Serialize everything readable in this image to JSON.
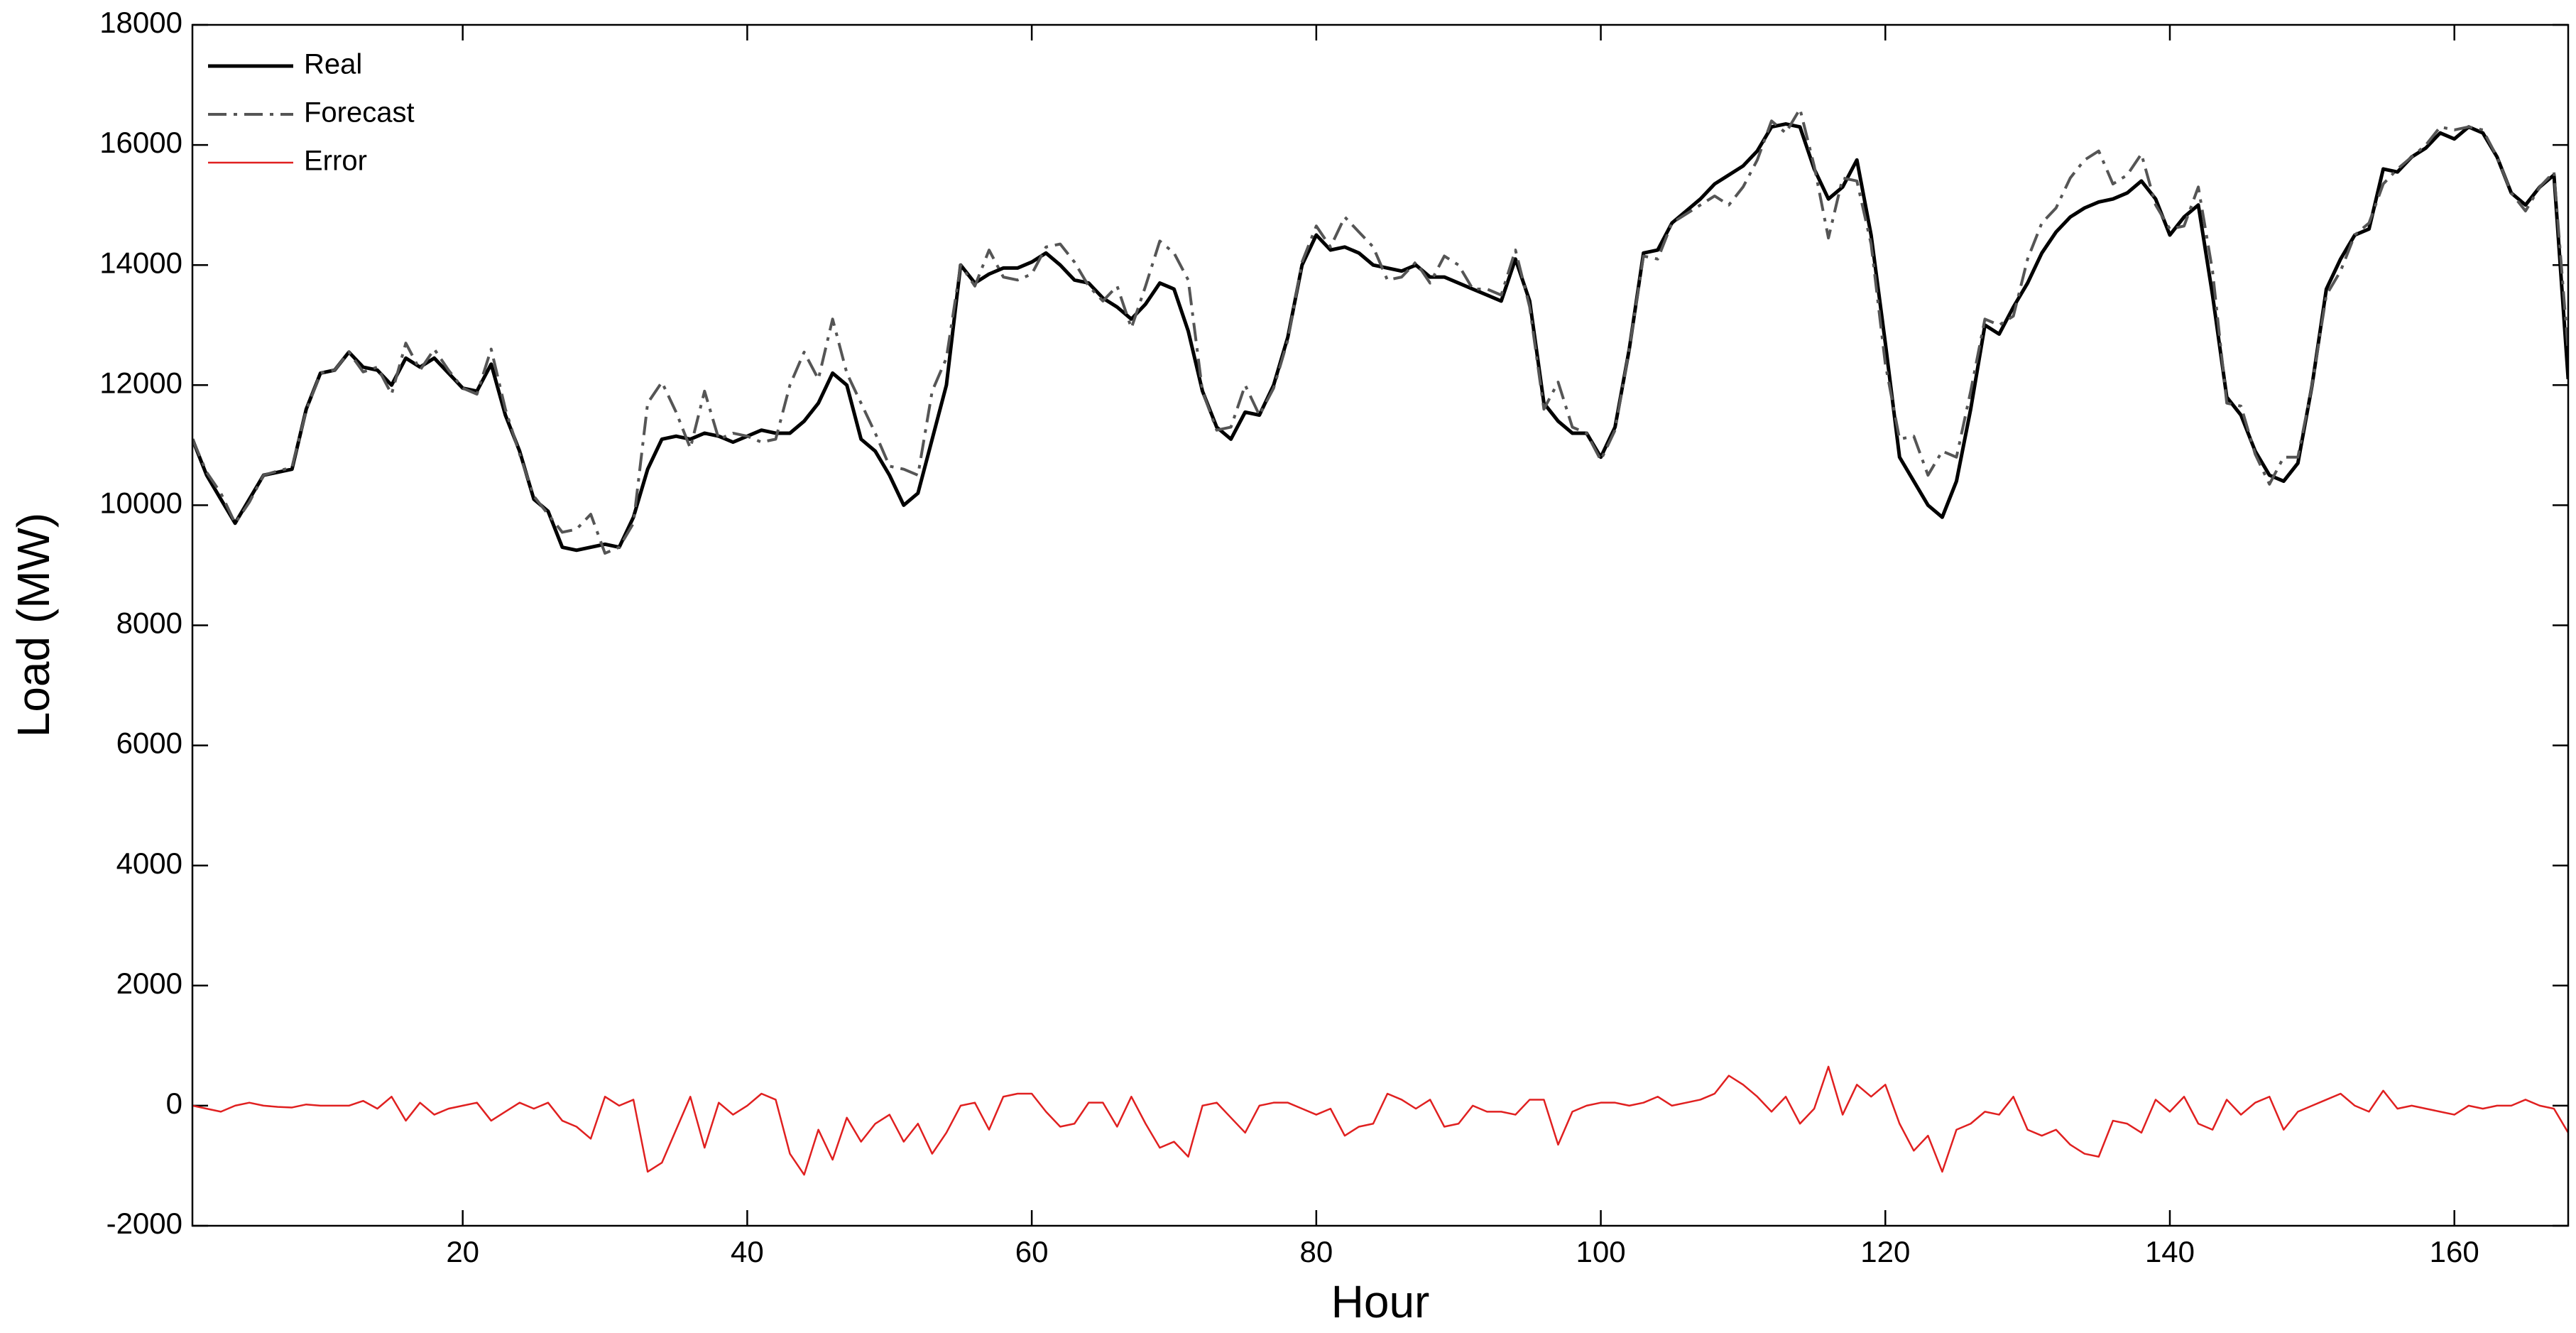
{
  "chart_data": {
    "type": "line",
    "xlabel": "Hour",
    "ylabel": "Load (MW)",
    "x": [
      1,
      2,
      3,
      4,
      5,
      6,
      7,
      8,
      9,
      10,
      11,
      12,
      13,
      14,
      15,
      16,
      17,
      18,
      19,
      20,
      21,
      22,
      23,
      24,
      25,
      26,
      27,
      28,
      29,
      30,
      31,
      32,
      33,
      34,
      35,
      36,
      37,
      38,
      39,
      40,
      41,
      42,
      43,
      44,
      45,
      46,
      47,
      48,
      49,
      50,
      51,
      52,
      53,
      54,
      55,
      56,
      57,
      58,
      59,
      60,
      61,
      62,
      63,
      64,
      65,
      66,
      67,
      68,
      69,
      70,
      71,
      72,
      73,
      74,
      75,
      76,
      77,
      78,
      79,
      80,
      81,
      82,
      83,
      84,
      85,
      86,
      87,
      88,
      89,
      90,
      91,
      92,
      93,
      94,
      95,
      96,
      97,
      98,
      99,
      100,
      101,
      102,
      103,
      104,
      105,
      106,
      107,
      108,
      109,
      110,
      111,
      112,
      113,
      114,
      115,
      116,
      117,
      118,
      119,
      120,
      121,
      122,
      123,
      124,
      125,
      126,
      127,
      128,
      129,
      130,
      131,
      132,
      133,
      134,
      135,
      136,
      137,
      138,
      139,
      140,
      141,
      142,
      143,
      144,
      145,
      146,
      147,
      148,
      149,
      150,
      151,
      152,
      153,
      154,
      155,
      156,
      157,
      158,
      159,
      160,
      161,
      162,
      163,
      164,
      165,
      166,
      167,
      168
    ],
    "series": [
      {
        "name": "Real",
        "color": "#000000",
        "linestyle": "solid",
        "values": [
          11100,
          10500,
          10100,
          9700,
          10100,
          10500,
          10550,
          10600,
          11600,
          12200,
          12250,
          12550,
          12300,
          12250,
          12000,
          12450,
          12300,
          12450,
          12200,
          11950,
          11900,
          12350,
          11500,
          10900,
          10100,
          9900,
          9300,
          9250,
          9300,
          9350,
          9300,
          9800,
          10600,
          11100,
          11150,
          11100,
          11200,
          11150,
          11050,
          11150,
          11250,
          11200,
          11200,
          11400,
          11700,
          12200,
          12000,
          11100,
          10900,
          10500,
          10000,
          10200,
          11100,
          12000,
          14000,
          13700,
          13850,
          13950,
          13950,
          14050,
          14200,
          14000,
          13750,
          13700,
          13450,
          13300,
          13100,
          13350,
          13700,
          13600,
          12900,
          11900,
          11300,
          11100,
          11550,
          11500,
          12000,
          12800,
          14000,
          14500,
          14250,
          14300,
          14200,
          14000,
          13950,
          13900,
          14000,
          13800,
          13800,
          13700,
          13600,
          13500,
          13400,
          14100,
          13400,
          11700,
          11400,
          11200,
          11200,
          10800,
          11300,
          12600,
          14200,
          14250,
          14700,
          14900,
          15100,
          15350,
          15500,
          15650,
          15900,
          16300,
          16350,
          16300,
          15600,
          15100,
          15300,
          15750,
          14500,
          12700,
          10800,
          10400,
          10000,
          9800,
          10400,
          11600,
          13000,
          12850,
          13300,
          13700,
          14200,
          14550,
          14800,
          14950,
          15050,
          15100,
          15200,
          15400,
          15100,
          14500,
          14800,
          15000,
          13500,
          11800,
          11500,
          10900,
          10500,
          10400,
          10700,
          12000,
          13600,
          14100,
          14500,
          14600,
          15600,
          15550,
          15800,
          15950,
          16200,
          16100,
          16300,
          16200,
          15800,
          15200,
          15000,
          15300,
          15500,
          12100
        ]
      },
      {
        "name": "Forecast",
        "color": "#555555",
        "linestyle": "dashdot",
        "values": [
          11100,
          10550,
          10200,
          9700,
          10050,
          10500,
          10570,
          10630,
          11580,
          12200,
          12250,
          12550,
          12220,
          12300,
          11850,
          12700,
          12250,
          12600,
          12250,
          11950,
          11850,
          12600,
          11600,
          10850,
          10150,
          9850,
          9550,
          9600,
          9850,
          9200,
          9300,
          9700,
          11700,
          12050,
          11550,
          10950,
          11900,
          11100,
          11200,
          11150,
          11050,
          11100,
          12000,
          12550,
          12100,
          13100,
          12200,
          11700,
          11200,
          10650,
          10600,
          10500,
          11900,
          12450,
          14000,
          13650,
          14250,
          13800,
          13750,
          13850,
          14300,
          14350,
          14050,
          13650,
          13400,
          13650,
          12950,
          13650,
          14400,
          14200,
          13750,
          11900,
          11250,
          11300,
          12000,
          11500,
          11950,
          12750,
          14050,
          14650,
          14300,
          14800,
          14550,
          14300,
          13750,
          13800,
          14050,
          13700,
          14150,
          14000,
          13600,
          13600,
          13500,
          14250,
          13300,
          11600,
          12050,
          11300,
          11200,
          10750,
          11250,
          12600,
          14150,
          14100,
          14700,
          14850,
          15000,
          15150,
          15000,
          15300,
          15750,
          16400,
          16200,
          16600,
          15650,
          14450,
          15450,
          15400,
          14350,
          12350,
          11100,
          11150,
          10500,
          10900,
          10800,
          11900,
          13100,
          13000,
          13150,
          14100,
          14700,
          14950,
          15450,
          15750,
          15900,
          15350,
          15500,
          15850,
          15000,
          14600,
          14650,
          15300,
          13900,
          11700,
          11650,
          10850,
          10350,
          10800,
          10800,
          12000,
          13500,
          13900,
          14500,
          14700,
          15350,
          15600,
          15800,
          16000,
          16300,
          16250,
          16300,
          16250,
          15800,
          15200,
          14900,
          15300,
          15550,
          12550
        ]
      },
      {
        "name": "Error",
        "color": "#e02020",
        "linestyle": "solid",
        "values": [
          0,
          -50,
          -100,
          0,
          50,
          0,
          -20,
          -30,
          20,
          0,
          0,
          0,
          80,
          -50,
          150,
          -250,
          50,
          -150,
          -50,
          0,
          50,
          -250,
          -100,
          50,
          -50,
          50,
          -250,
          -350,
          -550,
          150,
          0,
          100,
          -1100,
          -950,
          -400,
          150,
          -700,
          50,
          -150,
          0,
          200,
          100,
          -800,
          -1150,
          -400,
          -900,
          -200,
          -600,
          -300,
          -150,
          -600,
          -300,
          -800,
          -450,
          0,
          50,
          -400,
          150,
          200,
          200,
          -100,
          -350,
          -300,
          50,
          50,
          -350,
          150,
          -300,
          -700,
          -600,
          -850,
          0,
          50,
          -200,
          -450,
          0,
          50,
          50,
          -50,
          -150,
          -50,
          -500,
          -350,
          -300,
          200,
          100,
          -50,
          100,
          -350,
          -300,
          0,
          -100,
          -100,
          -150,
          100,
          100,
          -650,
          -100,
          0,
          50,
          50,
          0,
          50,
          150,
          0,
          50,
          100,
          200,
          500,
          350,
          150,
          -100,
          150,
          -300,
          -50,
          650,
          -150,
          350,
          150,
          350,
          -300,
          -750,
          -500,
          -1100,
          -400,
          -300,
          -100,
          -150,
          150,
          -400,
          -500,
          -400,
          -650,
          -800,
          -850,
          -250,
          -300,
          -450,
          100,
          -100,
          150,
          -300,
          -400,
          100,
          -150,
          50,
          150,
          -400,
          -100,
          0,
          100,
          200,
          0,
          -100,
          250,
          -50,
          0,
          -50,
          -100,
          -150,
          0,
          -50,
          0,
          0,
          100,
          0,
          -50,
          -450
        ]
      }
    ],
    "xlim": [
      1,
      168
    ],
    "ylim": [
      -2000,
      18000
    ],
    "xticks": [
      20,
      40,
      60,
      80,
      100,
      120,
      140,
      160
    ],
    "yticks": [
      -2000,
      0,
      2000,
      4000,
      6000,
      8000,
      10000,
      12000,
      14000,
      16000,
      18000
    ],
    "grid": false,
    "legend": "upper-left"
  }
}
